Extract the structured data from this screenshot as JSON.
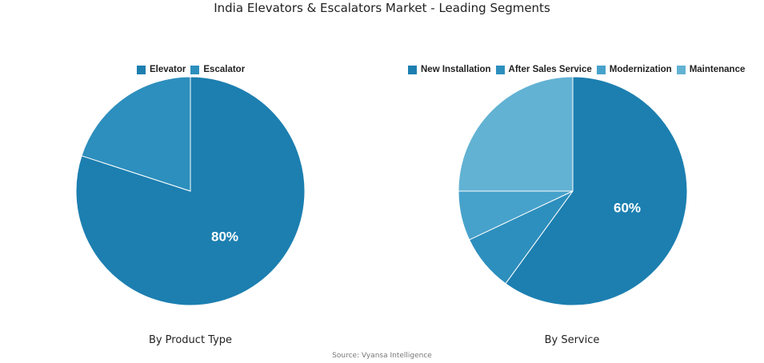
{
  "title": "India Elevators & Escalators Market - Leading Segments",
  "source": "Source: Vyansa Intelligence",
  "chart_data": [
    {
      "type": "pie",
      "subtitle": "By Product Type",
      "legend_position": "top",
      "slices": [
        {
          "name": "Elevator",
          "value": 80,
          "color": "#1c7fb0",
          "label": "80%"
        },
        {
          "name": "Escalator",
          "value": 20,
          "color": "#2d8fbd",
          "label": ""
        }
      ]
    },
    {
      "type": "pie",
      "subtitle": "By Service",
      "legend_position": "top",
      "slices": [
        {
          "name": "New Installation",
          "value": 60,
          "color": "#1c7fb0",
          "label": "60%"
        },
        {
          "name": "After Sales Service",
          "value": 8,
          "color": "#2d8fbd",
          "label": ""
        },
        {
          "name": "Modernization",
          "value": 7,
          "color": "#47a2cb",
          "label": ""
        },
        {
          "name": "Maintenance",
          "value": 25,
          "color": "#62b2d3",
          "label": ""
        }
      ]
    }
  ]
}
